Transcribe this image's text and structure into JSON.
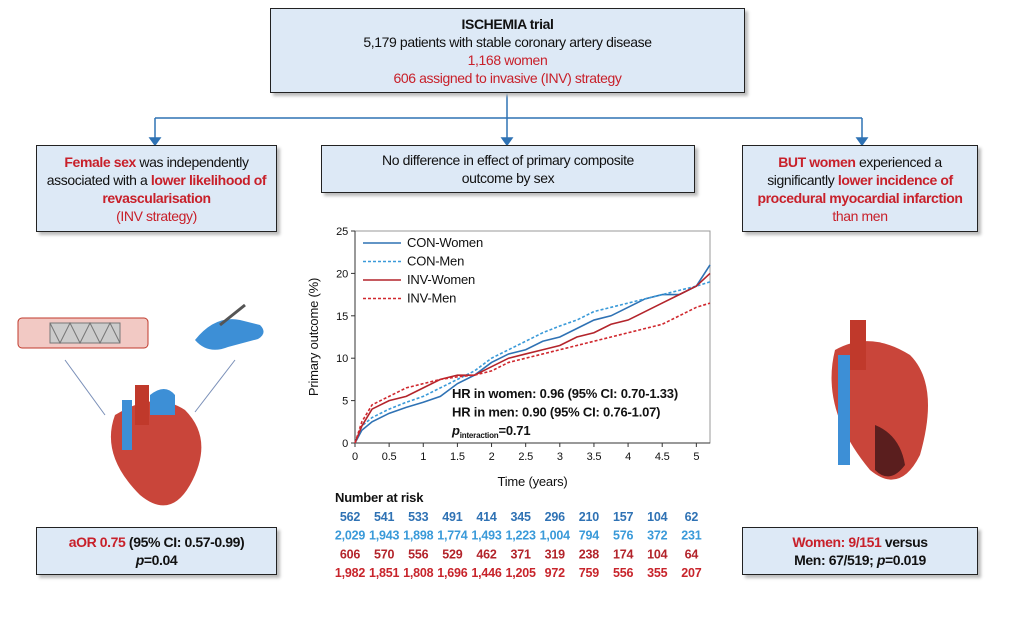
{
  "header": {
    "title": "ISCHEMIA trial",
    "line1": "5,179 patients with stable coronary artery disease",
    "line2": "1,168 women",
    "line3": "606 assigned to invasive (INV) strategy"
  },
  "left_box": {
    "segments": [
      "Female sex",
      " was independently associated with a ",
      "lower likelihood of revascularisation",
      "(INV strategy)"
    ]
  },
  "middle_box": {
    "text": "No difference in effect of primary composite outcome by sex"
  },
  "right_box": {
    "segments": [
      "BUT women",
      " experienced a significantly ",
      "lower incidence of procedural myocardial infarction",
      " than men"
    ]
  },
  "left_result": {
    "segments": [
      "aOR 0.75",
      " (95% CI: 0.57-0.99)",
      "p",
      "=0.04"
    ]
  },
  "right_result": {
    "segments": [
      "Women: 9/151",
      " versus",
      "Men: 67/519; ",
      "p",
      "=0.019"
    ]
  },
  "chart_data": {
    "type": "line",
    "x_label": "Time (years)",
    "y_label": "Primary outcome (%)",
    "x": [
      0,
      0.1,
      0.25,
      0.5,
      0.75,
      1,
      1.25,
      1.5,
      1.75,
      2,
      2.25,
      2.5,
      2.75,
      3,
      3.25,
      3.5,
      3.75,
      4,
      4.25,
      4.5,
      4.75,
      5,
      5.2
    ],
    "series": [
      {
        "name": "CON-Women",
        "color": "#2f72b4",
        "style": "solid",
        "values": [
          0,
          1.5,
          2.5,
          3.5,
          4.2,
          4.8,
          5.5,
          7,
          8,
          9.5,
          10.5,
          11,
          12,
          12.5,
          13.5,
          14.5,
          15,
          16,
          17,
          17.5,
          17.5,
          18.5,
          21
        ]
      },
      {
        "name": "CON-Men",
        "color": "#3a9ad9",
        "style": "dashed",
        "values": [
          0,
          2,
          3,
          4,
          4.8,
          5.5,
          6.5,
          7.5,
          8.5,
          10,
          11,
          12,
          13,
          13.8,
          14.5,
          15.5,
          16,
          16.5,
          17,
          17.5,
          18,
          18.5,
          19
        ]
      },
      {
        "name": "INV-Women",
        "color": "#b3242b",
        "style": "solid",
        "values": [
          0,
          2,
          4,
          5,
          5.5,
          6.5,
          7.5,
          8,
          8,
          9,
          10,
          10.5,
          11,
          11.5,
          12.5,
          13,
          14,
          14.5,
          15.5,
          16.5,
          17.5,
          18.5,
          20
        ]
      },
      {
        "name": "INV-Men",
        "color": "#d0282e",
        "style": "dashed",
        "values": [
          0,
          2.5,
          4.5,
          5.5,
          6.5,
          7,
          7.5,
          7.8,
          8,
          8.5,
          9.5,
          10,
          10.5,
          11,
          11.5,
          12,
          12.5,
          13,
          13.5,
          14,
          15,
          16,
          16.5
        ]
      }
    ],
    "xlim": [
      0,
      5.2
    ],
    "xticks": [
      0,
      0.5,
      1,
      1.5,
      2,
      2.5,
      3,
      3.5,
      4,
      4.5,
      5
    ],
    "ylim": [
      0,
      25
    ],
    "yticks": [
      0,
      5,
      10,
      15,
      20,
      25
    ],
    "legend": "top-left",
    "annotations": [
      "HR in women: 0.96 (95% CI: 0.70-1.33)",
      "HR in men: 0.90 (95% CI: 0.76-1.07)"
    ],
    "p_interaction": {
      "symbol": "p",
      "subscript": "interaction",
      "text": "=0.71"
    }
  },
  "risk_table": {
    "title": "Number at risk",
    "rows": [
      {
        "color": "#2f72b4",
        "values": [
          "562",
          "541",
          "533",
          "491",
          "414",
          "345",
          "296",
          "210",
          "157",
          "104",
          "62"
        ]
      },
      {
        "color": "#3a9ad9",
        "values": [
          "2,029",
          "1,943",
          "1,898",
          "1,774",
          "1,493",
          "1,223",
          "1,004",
          "794",
          "576",
          "372",
          "231"
        ]
      },
      {
        "color": "#b3242b",
        "values": [
          "606",
          "570",
          "556",
          "529",
          "462",
          "371",
          "319",
          "238",
          "174",
          "104",
          "64"
        ]
      },
      {
        "color": "#c8242b",
        "values": [
          "1,982",
          "1,851",
          "1,808",
          "1,696",
          "1,446",
          "1,205",
          "972",
          "759",
          "556",
          "355",
          "207"
        ]
      }
    ]
  }
}
